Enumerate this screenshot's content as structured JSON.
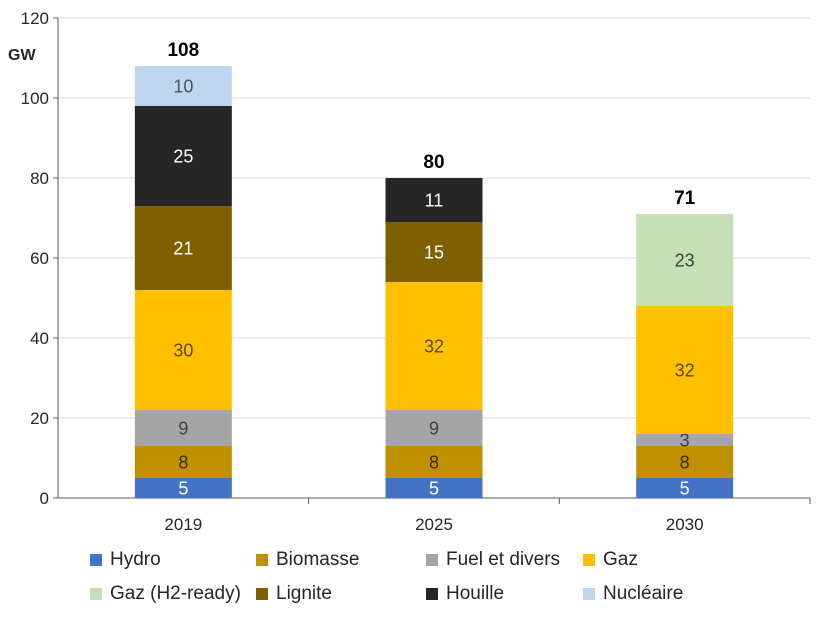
{
  "chart_data": {
    "type": "stacked-bar",
    "ylabel": "GW",
    "ylim": [
      0,
      120
    ],
    "yticks": [
      0,
      20,
      40,
      60,
      80,
      100,
      120
    ],
    "grid": true,
    "legend_position": "bottom",
    "categories": [
      "2019",
      "2025",
      "2030"
    ],
    "totals": [
      "108",
      "80",
      "71"
    ],
    "series": [
      {
        "name": "Hydro",
        "color": "#4472C4",
        "label_color": "#FFFFFF",
        "values": [
          5,
          5,
          5
        ]
      },
      {
        "name": "Biomasse",
        "color": "#BF9000",
        "label_color": "#3A2E00",
        "values": [
          8,
          8,
          8
        ]
      },
      {
        "name": "Fuel et divers",
        "color": "#A5A5A5",
        "label_color": "#404040",
        "values": [
          9,
          9,
          3
        ]
      },
      {
        "name": "Gaz",
        "color": "#FFC000",
        "label_color": "#5C4600",
        "values": [
          30,
          32,
          32
        ]
      },
      {
        "name": "Gaz (H2-ready)",
        "color": "#C5E0B4",
        "label_color": "#404040",
        "values": [
          0,
          0,
          23
        ]
      },
      {
        "name": "Lignite",
        "color": "#7F6000",
        "label_color": "#FFFFFF",
        "values": [
          21,
          15,
          0
        ]
      },
      {
        "name": "Houille",
        "color": "#262626",
        "label_color": "#FFFFFF",
        "values": [
          25,
          11,
          0
        ]
      },
      {
        "name": "Nucléaire",
        "color": "#BDD7EE",
        "label_color": "#44546A",
        "values": [
          10,
          0,
          0
        ]
      }
    ],
    "legend_order": [
      "Hydro",
      "Biomasse",
      "Fuel et divers",
      "Gaz",
      "Gaz (H2-ready)",
      "Lignite",
      "Houille",
      "Nucléaire"
    ]
  }
}
